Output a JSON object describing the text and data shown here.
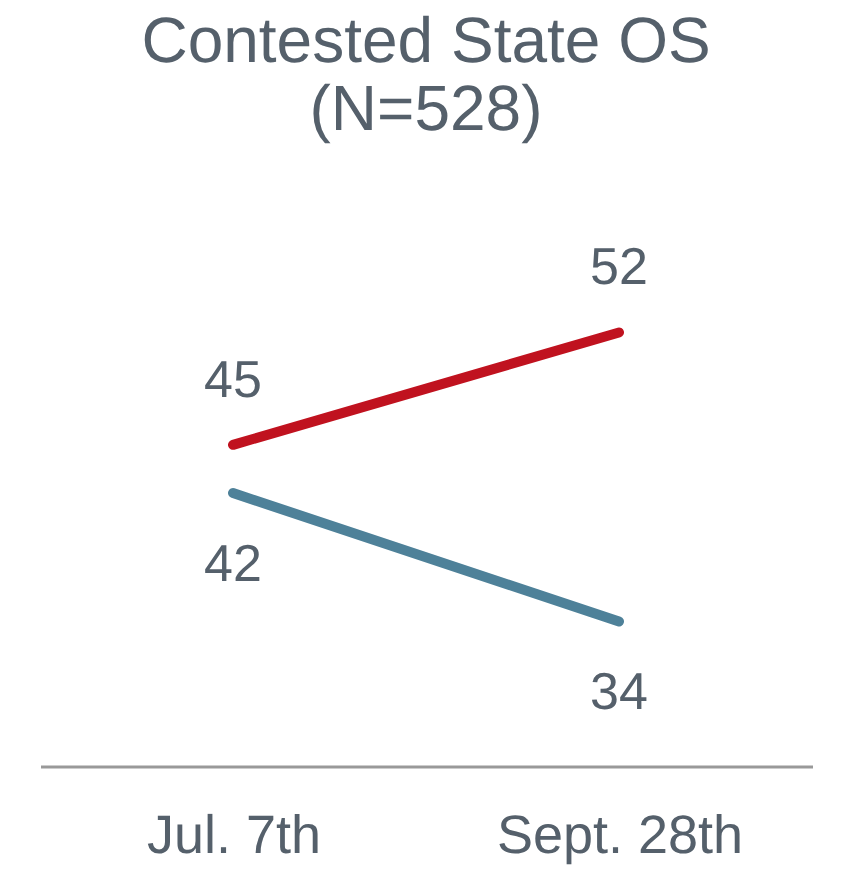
{
  "chart_data": {
    "type": "line",
    "title": [
      "Contested State OS",
      "(N=528)"
    ],
    "categories": [
      "Jul. 7th",
      "Sept. 28th"
    ],
    "series": [
      {
        "color": "#c0121f",
        "values": [
          45,
          52
        ]
      },
      {
        "color": "#4e8199",
        "values": [
          42,
          34
        ]
      }
    ],
    "data_labels": true,
    "grid": false,
    "legend": false,
    "marker": "none",
    "line_style": "solid",
    "tick_labels": "x"
  }
}
